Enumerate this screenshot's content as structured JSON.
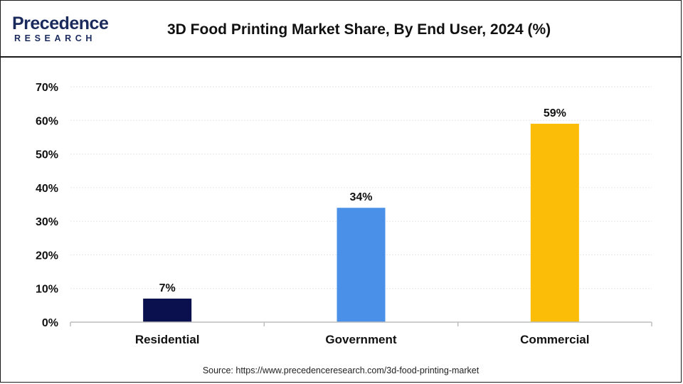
{
  "header": {
    "logo_top": "Precedence",
    "logo_bottom": "RESEARCH",
    "title": "3D Food Printing Market Share, By End User, 2024 (%)"
  },
  "footer": {
    "source": "Source: https://www.precedenceresearch.com/3d-food-printing-market"
  },
  "colors": {
    "brand": "#1b2a5c",
    "residential": "#0a0f4d",
    "government": "#4a90e8",
    "commercial": "#fbbd08"
  },
  "chart_data": {
    "type": "bar",
    "title": "3D Food Printing Market Share, By End User, 2024 (%)",
    "categories": [
      "Residential",
      "Government",
      "Commercial"
    ],
    "values": [
      7,
      34,
      59
    ],
    "value_labels": [
      "7%",
      "34%",
      "59%"
    ],
    "bar_colors": [
      "#0a0f4d",
      "#4a90e8",
      "#fbbd08"
    ],
    "yticks": [
      0,
      10,
      20,
      30,
      40,
      50,
      60,
      70
    ],
    "ytick_labels": [
      "0%",
      "10%",
      "20%",
      "30%",
      "40%",
      "50%",
      "60%",
      "70%"
    ],
    "ylim": [
      0,
      70
    ],
    "grid": true,
    "xlabel": "",
    "ylabel": ""
  }
}
